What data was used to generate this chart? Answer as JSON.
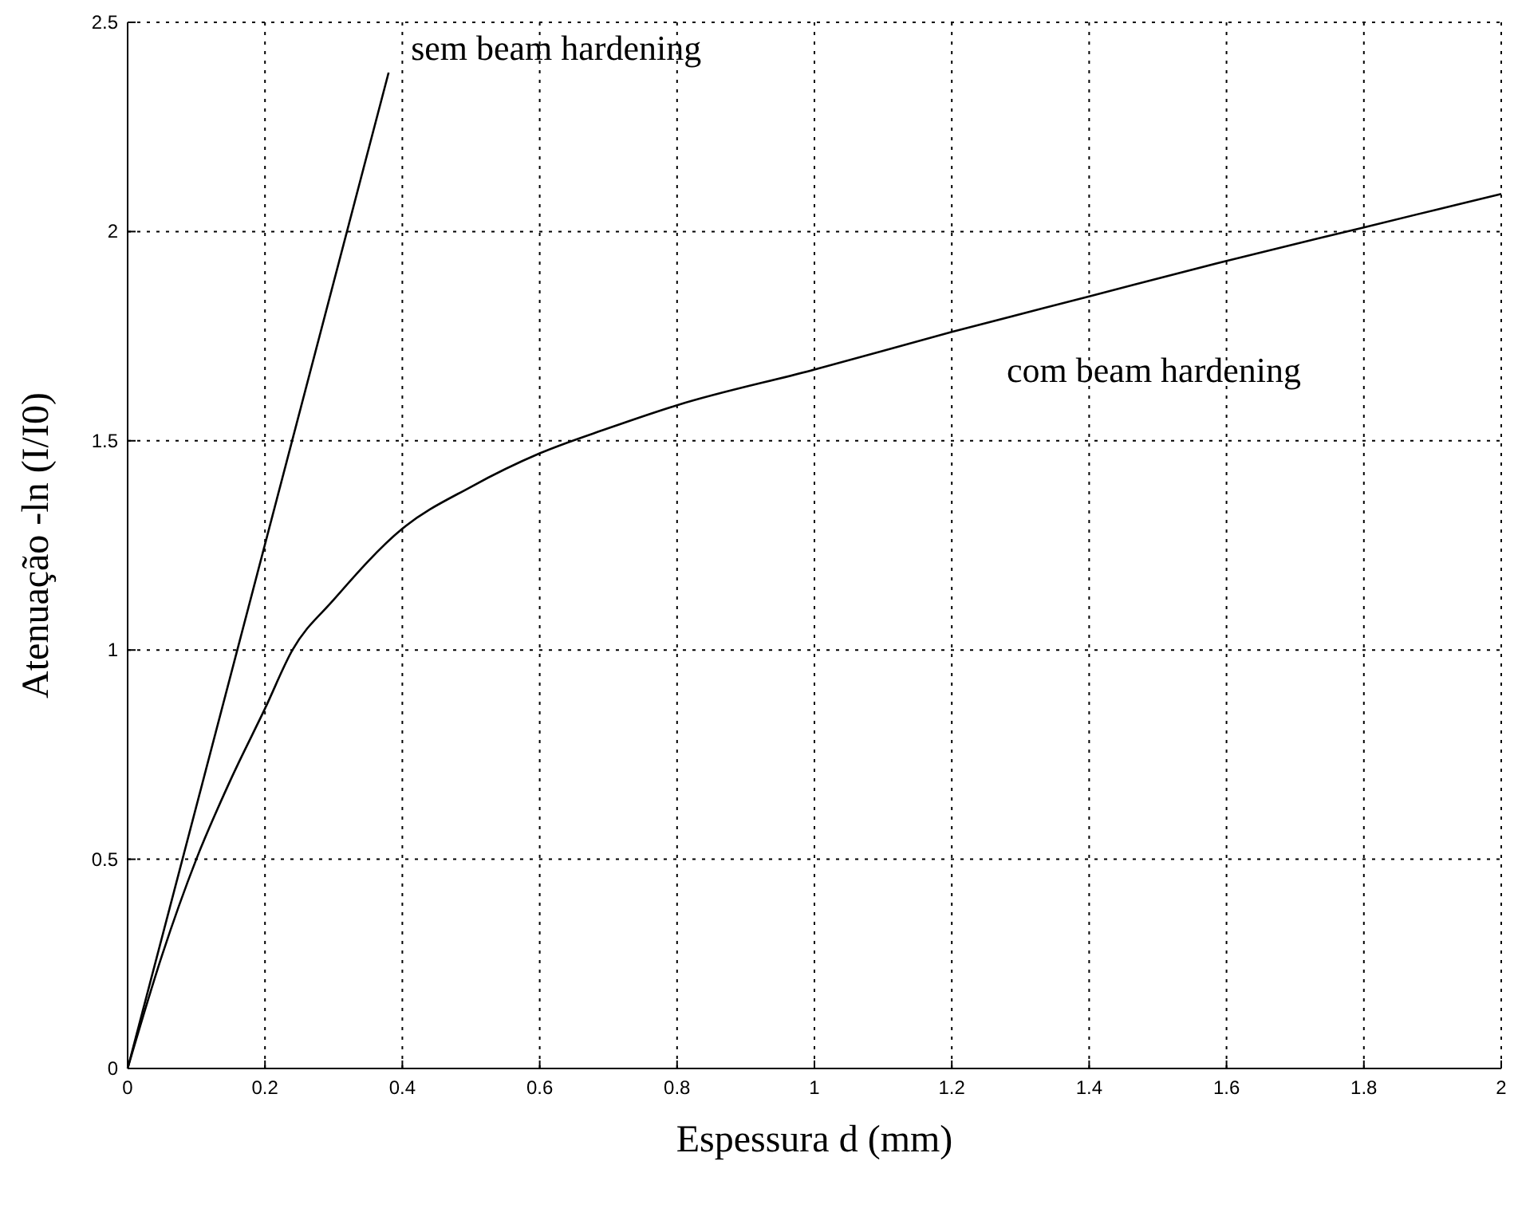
{
  "chart_data": {
    "type": "line",
    "xlabel": "Espessura d (mm)",
    "ylabel": "Atenuação -ln (I/I0)",
    "series": [
      {
        "name": "sem beam hardening",
        "x": [
          0,
          0.38
        ],
        "values": [
          0,
          2.38
        ],
        "color": "#000000"
      },
      {
        "name": "com beam hardening",
        "x": [
          0,
          0.05,
          0.1,
          0.15,
          0.2,
          0.24,
          0.3,
          0.4,
          0.5,
          0.6,
          0.7,
          0.8,
          1.0,
          1.2,
          1.4,
          1.6,
          1.8,
          2.0
        ],
        "values": [
          0,
          0.27,
          0.5,
          0.69,
          0.86,
          1.0,
          1.12,
          1.29,
          1.39,
          1.47,
          1.53,
          1.585,
          1.67,
          1.76,
          1.845,
          1.93,
          2.01,
          2.09
        ],
        "color": "#000000"
      }
    ],
    "xlim": [
      0,
      2
    ],
    "ylim": [
      0,
      2.5
    ],
    "xticks": [
      0,
      0.2,
      0.4,
      0.6,
      0.8,
      1,
      1.2,
      1.4,
      1.6,
      1.8,
      2
    ],
    "yticks": [
      0,
      0.5,
      1,
      1.5,
      2,
      2.5
    ],
    "grid": true,
    "line_style": "solid",
    "marker": "none"
  }
}
